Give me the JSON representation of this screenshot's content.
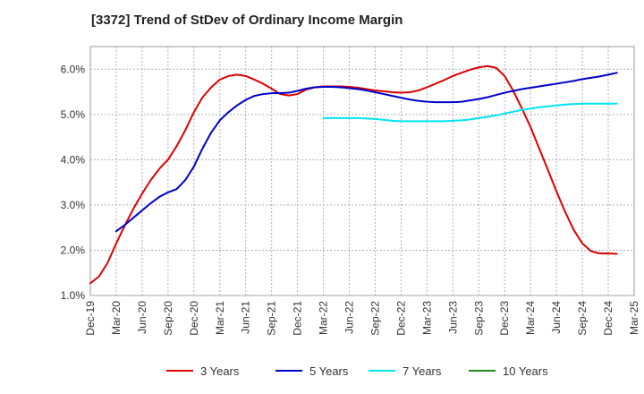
{
  "chart_data": {
    "type": "line",
    "title": "[3372]  Trend of StDev of Ordinary Income Margin",
    "xlabel": "",
    "ylabel": "",
    "ylim": [
      1.0,
      6.5
    ],
    "y_ticks": [
      "1.0%",
      "2.0%",
      "3.0%",
      "4.0%",
      "5.0%",
      "6.0%"
    ],
    "y_tick_values": [
      1.0,
      2.0,
      3.0,
      4.0,
      5.0,
      6.0
    ],
    "categories": [
      "Dec-19",
      "Mar-20",
      "Jun-20",
      "Sep-20",
      "Dec-20",
      "Mar-21",
      "Jun-21",
      "Sep-21",
      "Dec-21",
      "Mar-22",
      "Jun-22",
      "Sep-22",
      "Dec-22",
      "Mar-23",
      "Jun-23",
      "Sep-23",
      "Dec-23",
      "Mar-24",
      "Jun-24",
      "Sep-24",
      "Dec-24",
      "Mar-25"
    ],
    "x_units": "months since Dec-19",
    "grid": true,
    "legend_position": "bottom",
    "series": [
      {
        "name": "3 Years",
        "color": "#dd0000",
        "points": [
          [
            0,
            1.27
          ],
          [
            1,
            1.42
          ],
          [
            2,
            1.72
          ],
          [
            3,
            2.15
          ],
          [
            4,
            2.55
          ],
          [
            5,
            2.92
          ],
          [
            6,
            3.25
          ],
          [
            7,
            3.55
          ],
          [
            8,
            3.8
          ],
          [
            9,
            4.0
          ],
          [
            10,
            4.3
          ],
          [
            11,
            4.65
          ],
          [
            12,
            5.05
          ],
          [
            13,
            5.38
          ],
          [
            14,
            5.6
          ],
          [
            15,
            5.77
          ],
          [
            16,
            5.85
          ],
          [
            17,
            5.88
          ],
          [
            18,
            5.85
          ],
          [
            19,
            5.77
          ],
          [
            20,
            5.68
          ],
          [
            21,
            5.57
          ],
          [
            22,
            5.45
          ],
          [
            23,
            5.42
          ],
          [
            24,
            5.45
          ],
          [
            25,
            5.55
          ],
          [
            26,
            5.6
          ],
          [
            27,
            5.62
          ],
          [
            28,
            5.62
          ],
          [
            29,
            5.62
          ],
          [
            30,
            5.61
          ],
          [
            31,
            5.59
          ],
          [
            32,
            5.56
          ],
          [
            33,
            5.53
          ],
          [
            34,
            5.51
          ],
          [
            35,
            5.49
          ],
          [
            36,
            5.48
          ],
          [
            37,
            5.49
          ],
          [
            38,
            5.53
          ],
          [
            39,
            5.6
          ],
          [
            40,
            5.68
          ],
          [
            41,
            5.76
          ],
          [
            42,
            5.85
          ],
          [
            43,
            5.92
          ],
          [
            44,
            5.99
          ],
          [
            45,
            6.04
          ],
          [
            46,
            6.07
          ],
          [
            47,
            6.03
          ],
          [
            48,
            5.85
          ],
          [
            49,
            5.52
          ],
          [
            50,
            5.13
          ],
          [
            51,
            4.72
          ],
          [
            52,
            4.25
          ],
          [
            53,
            3.78
          ],
          [
            54,
            3.3
          ],
          [
            55,
            2.85
          ],
          [
            56,
            2.45
          ],
          [
            57,
            2.15
          ],
          [
            58,
            1.98
          ],
          [
            59,
            1.93
          ],
          [
            60,
            1.93
          ],
          [
            61,
            1.92
          ]
        ]
      },
      {
        "name": "5 Years",
        "color": "#0000cc",
        "points": [
          [
            3,
            2.42
          ],
          [
            4,
            2.56
          ],
          [
            5,
            2.72
          ],
          [
            6,
            2.88
          ],
          [
            7,
            3.04
          ],
          [
            8,
            3.18
          ],
          [
            9,
            3.28
          ],
          [
            10,
            3.35
          ],
          [
            11,
            3.55
          ],
          [
            12,
            3.85
          ],
          [
            13,
            4.25
          ],
          [
            14,
            4.6
          ],
          [
            15,
            4.87
          ],
          [
            16,
            5.05
          ],
          [
            17,
            5.2
          ],
          [
            18,
            5.32
          ],
          [
            19,
            5.41
          ],
          [
            20,
            5.45
          ],
          [
            21,
            5.47
          ],
          [
            22,
            5.47
          ],
          [
            23,
            5.48
          ],
          [
            24,
            5.52
          ],
          [
            25,
            5.57
          ],
          [
            26,
            5.6
          ],
          [
            27,
            5.61
          ],
          [
            28,
            5.61
          ],
          [
            29,
            5.6
          ],
          [
            30,
            5.58
          ],
          [
            31,
            5.56
          ],
          [
            32,
            5.53
          ],
          [
            33,
            5.49
          ],
          [
            34,
            5.45
          ],
          [
            35,
            5.41
          ],
          [
            36,
            5.37
          ],
          [
            37,
            5.33
          ],
          [
            38,
            5.3
          ],
          [
            39,
            5.28
          ],
          [
            40,
            5.27
          ],
          [
            41,
            5.27
          ],
          [
            42,
            5.27
          ],
          [
            43,
            5.28
          ],
          [
            44,
            5.31
          ],
          [
            45,
            5.34
          ],
          [
            46,
            5.38
          ],
          [
            47,
            5.43
          ],
          [
            48,
            5.48
          ],
          [
            49,
            5.52
          ],
          [
            50,
            5.56
          ],
          [
            51,
            5.59
          ],
          [
            52,
            5.62
          ],
          [
            53,
            5.65
          ],
          [
            54,
            5.68
          ],
          [
            55,
            5.71
          ],
          [
            56,
            5.74
          ],
          [
            57,
            5.78
          ],
          [
            58,
            5.81
          ],
          [
            59,
            5.84
          ],
          [
            60,
            5.88
          ],
          [
            61,
            5.92
          ]
        ]
      },
      {
        "name": "7 Years",
        "color": "#00e5ee",
        "points": [
          [
            27,
            4.92
          ],
          [
            28,
            4.92
          ],
          [
            29,
            4.92
          ],
          [
            30,
            4.92
          ],
          [
            31,
            4.92
          ],
          [
            32,
            4.91
          ],
          [
            33,
            4.9
          ],
          [
            34,
            4.88
          ],
          [
            35,
            4.86
          ],
          [
            36,
            4.85
          ],
          [
            37,
            4.85
          ],
          [
            38,
            4.85
          ],
          [
            39,
            4.85
          ],
          [
            40,
            4.85
          ],
          [
            41,
            4.85
          ],
          [
            42,
            4.86
          ],
          [
            43,
            4.87
          ],
          [
            44,
            4.89
          ],
          [
            45,
            4.92
          ],
          [
            46,
            4.95
          ],
          [
            47,
            4.98
          ],
          [
            48,
            5.02
          ],
          [
            49,
            5.06
          ],
          [
            50,
            5.1
          ],
          [
            51,
            5.13
          ],
          [
            52,
            5.16
          ],
          [
            53,
            5.18
          ],
          [
            54,
            5.2
          ],
          [
            55,
            5.22
          ],
          [
            56,
            5.23
          ],
          [
            57,
            5.24
          ],
          [
            58,
            5.24
          ],
          [
            59,
            5.24
          ],
          [
            60,
            5.24
          ],
          [
            61,
            5.24
          ]
        ]
      },
      {
        "name": "10 Years",
        "color": "#228b22",
        "points": []
      }
    ]
  }
}
